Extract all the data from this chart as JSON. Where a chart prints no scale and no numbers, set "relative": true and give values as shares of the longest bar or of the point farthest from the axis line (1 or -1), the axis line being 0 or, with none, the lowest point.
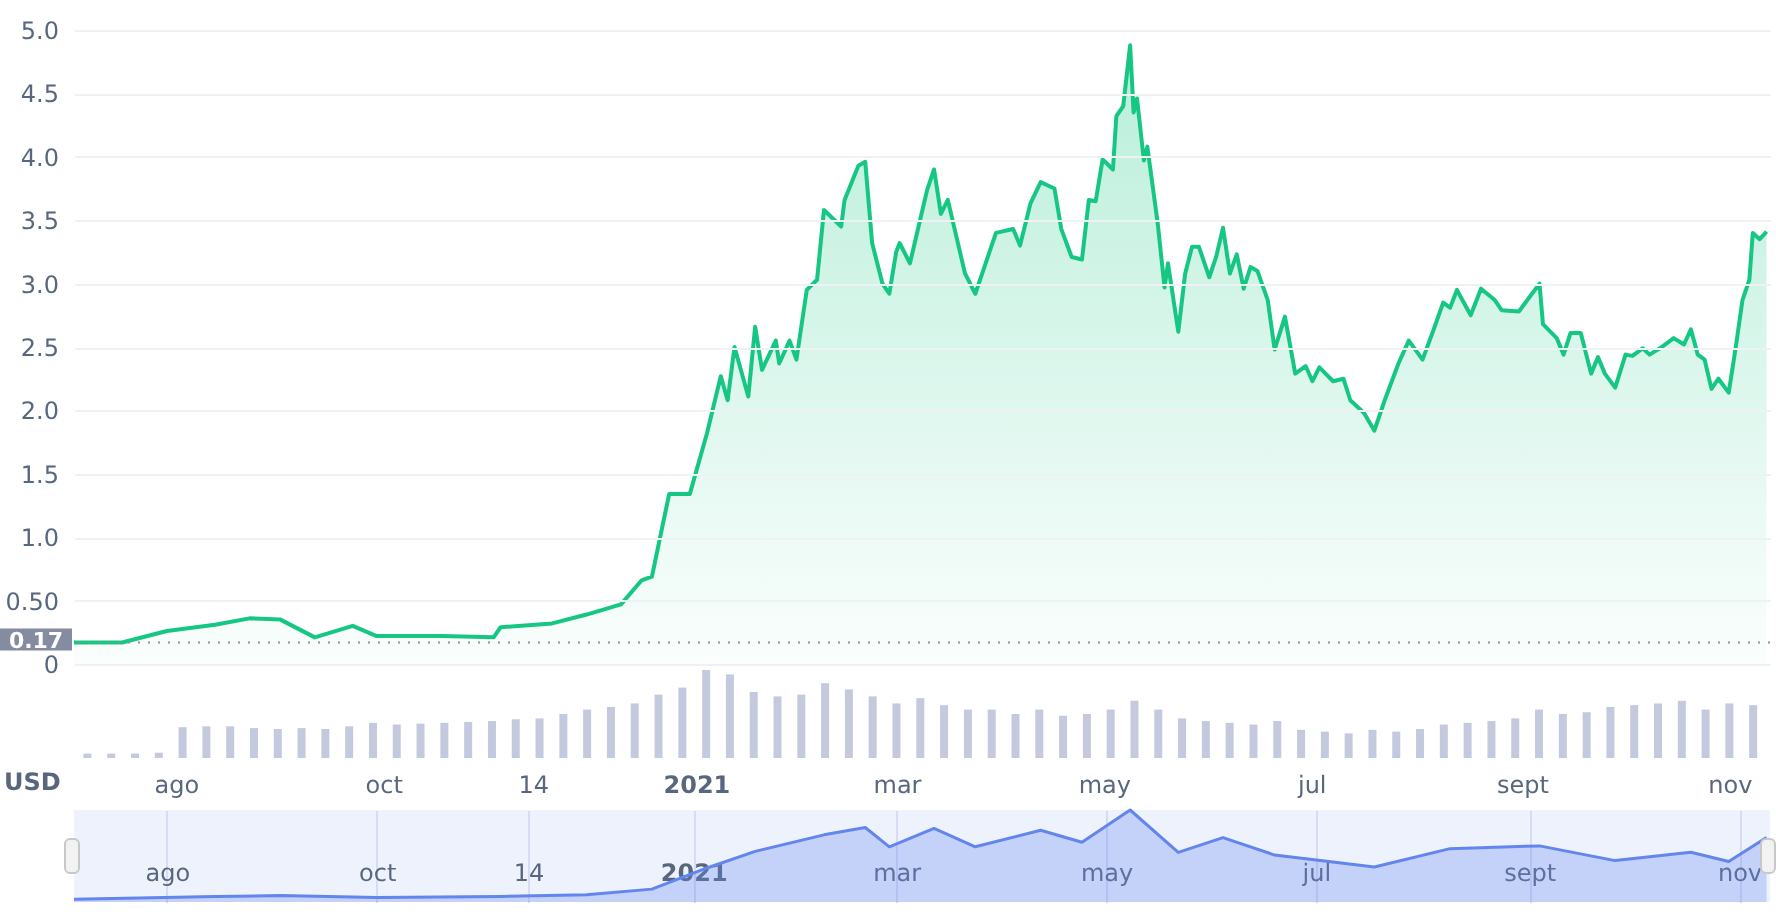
{
  "chart_data": [
    {
      "type": "area",
      "xlim": [
        "2020-07-05",
        "2021-11-10"
      ],
      "ylim": [
        0,
        5.0
      ],
      "yticks": [
        0,
        {
          "value": 0.5,
          "label": "0.50"
        },
        {
          "value": 1,
          "label": "1.0"
        },
        {
          "value": 1.5,
          "label": "1.5"
        },
        {
          "value": 2,
          "label": "2.0"
        },
        {
          "value": 2.5,
          "label": "2.5"
        },
        {
          "value": 3,
          "label": "3.0"
        },
        {
          "value": 3.5,
          "label": "3.5"
        },
        {
          "value": 4,
          "label": "4.0"
        },
        {
          "value": 4.5,
          "label": "4.5"
        },
        {
          "value": 5,
          "label": "5.0"
        }
      ],
      "tick_labels": "y",
      "grid": "y",
      "ref_lines": [
        {
          "axis": "y",
          "value": 0.17,
          "label": "0.17",
          "line_style": "dotted"
        }
      ],
      "series": [
        {
          "color": "#16c784",
          "x": [
            "2020-07-05",
            "2020-07-19",
            "2020-08-01",
            "2020-08-15",
            "2020-08-25",
            "2020-09-03",
            "2020-09-13",
            "2020-09-24",
            "2020-10-01",
            "2020-10-20",
            "2020-11-04",
            "2020-11-06",
            "2020-11-21",
            "2020-12-01",
            "2020-12-11",
            "2020-12-17",
            "2020-12-20",
            "2020-12-25",
            "2020-12-31",
            "2021-01-05",
            "2021-01-09",
            "2021-01-11",
            "2021-01-13",
            "2021-01-17",
            "2021-01-19",
            "2021-01-21",
            "2021-01-25",
            "2021-01-26",
            "2021-01-29",
            "2021-01-31",
            "2021-02-03",
            "2021-02-06",
            "2021-02-08",
            "2021-02-13",
            "2021-02-14",
            "2021-02-18",
            "2021-02-20",
            "2021-02-22",
            "2021-02-25",
            "2021-02-27",
            "2021-03-01",
            "2021-03-02",
            "2021-03-05",
            "2021-03-10",
            "2021-03-12",
            "2021-03-14",
            "2021-03-16",
            "2021-03-21",
            "2021-03-24",
            "2021-03-30",
            "2021-04-04",
            "2021-04-06",
            "2021-04-09",
            "2021-04-12",
            "2021-04-16",
            "2021-04-18",
            "2021-04-21",
            "2021-04-24",
            "2021-04-26",
            "2021-04-28",
            "2021-04-30",
            "2021-05-03",
            "2021-05-04",
            "2021-05-06",
            "2021-05-08",
            "2021-05-09",
            "2021-05-10",
            "2021-05-12",
            "2021-05-13",
            "2021-05-16",
            "2021-05-18",
            "2021-05-19",
            "2021-05-22",
            "2021-05-24",
            "2021-05-26",
            "2021-05-28",
            "2021-05-31",
            "2021-06-02",
            "2021-06-04",
            "2021-06-06",
            "2021-06-08",
            "2021-06-10",
            "2021-06-12",
            "2021-06-14",
            "2021-06-17",
            "2021-06-19",
            "2021-06-22",
            "2021-06-25",
            "2021-06-28",
            "2021-06-30",
            "2021-07-02",
            "2021-07-06",
            "2021-07-09",
            "2021-07-11",
            "2021-07-15",
            "2021-07-18",
            "2021-07-21",
            "2021-07-25",
            "2021-07-28",
            "2021-08-01",
            "2021-08-04",
            "2021-08-07",
            "2021-08-09",
            "2021-08-11",
            "2021-08-15",
            "2021-08-18",
            "2021-08-22",
            "2021-08-24",
            "2021-08-29",
            "2021-09-01",
            "2021-09-04",
            "2021-09-05",
            "2021-09-09",
            "2021-09-11",
            "2021-09-13",
            "2021-09-16",
            "2021-09-19",
            "2021-09-21",
            "2021-09-23",
            "2021-09-26",
            "2021-09-29",
            "2021-10-01",
            "2021-10-04",
            "2021-10-06",
            "2021-10-09",
            "2021-10-13",
            "2021-10-16",
            "2021-10-18",
            "2021-10-20",
            "2021-10-22",
            "2021-10-24",
            "2021-10-26",
            "2021-10-29",
            "2021-10-31",
            "2021-11-02",
            "2021-11-04",
            "2021-11-05",
            "2021-11-07",
            "2021-11-09"
          ],
          "values": [
            0.17,
            0.17,
            0.26,
            0.31,
            0.36,
            0.35,
            0.21,
            0.3,
            0.22,
            0.22,
            0.21,
            0.29,
            0.32,
            0.39,
            0.47,
            0.66,
            0.69,
            1.34,
            1.34,
            1.82,
            2.27,
            2.08,
            2.5,
            2.11,
            2.66,
            2.32,
            2.55,
            2.37,
            2.55,
            2.4,
            2.95,
            3.03,
            3.58,
            3.45,
            3.66,
            3.93,
            3.96,
            3.32,
            3.0,
            2.92,
            3.25,
            3.32,
            3.16,
            3.74,
            3.9,
            3.55,
            3.66,
            3.08,
            2.92,
            3.4,
            3.43,
            3.3,
            3.63,
            3.8,
            3.75,
            3.43,
            3.21,
            3.19,
            3.66,
            3.65,
            3.98,
            3.9,
            4.32,
            4.4,
            4.88,
            4.35,
            4.46,
            3.97,
            4.08,
            3.48,
            2.97,
            3.16,
            2.62,
            3.08,
            3.29,
            3.29,
            3.05,
            3.21,
            3.44,
            3.08,
            3.23,
            2.96,
            3.13,
            3.1,
            2.87,
            2.48,
            2.74,
            2.29,
            2.35,
            2.23,
            2.34,
            2.23,
            2.25,
            2.08,
            1.98,
            1.84,
            2.08,
            2.37,
            2.55,
            2.4,
            2.62,
            2.85,
            2.81,
            2.95,
            2.75,
            2.96,
            2.87,
            2.79,
            2.78,
            2.89,
            3.0,
            2.68,
            2.57,
            2.44,
            2.61,
            2.61,
            2.29,
            2.42,
            2.29,
            2.18,
            2.44,
            2.43,
            2.49,
            2.44,
            2.49,
            2.57,
            2.52,
            2.64,
            2.44,
            2.4,
            2.17,
            2.25,
            2.14,
            2.49,
            2.87,
            3.03,
            3.4,
            3.35,
            3.41
          ]
        }
      ]
    },
    {
      "type": "bar",
      "relative": true,
      "xlim": [
        "2020-07-05",
        "2021-11-10"
      ],
      "xticks": [
        {
          "value": "2020-08-01",
          "label": "ago"
        },
        {
          "value": "2020-10-01",
          "label": "oct"
        },
        {
          "value": "2020-11-14",
          "label": "14"
        },
        {
          "value": "2021-01-01",
          "label": "2021"
        },
        {
          "value": "2021-03-01",
          "label": "mar"
        },
        {
          "value": "2021-05-01",
          "label": "may"
        },
        {
          "value": "2021-07-01",
          "label": "jul"
        },
        {
          "value": "2021-09-01",
          "label": "sept"
        },
        {
          "value": "2021-11-01",
          "label": "nov"
        }
      ],
      "tick_labels": "x",
      "annotations": [
        "USD"
      ],
      "series": [
        {
          "color": "#c5c9de",
          "x": [
            "2020-07-06",
            "2020-07-13",
            "2020-07-20",
            "2020-07-27",
            "2020-08-03",
            "2020-08-10",
            "2020-08-17",
            "2020-08-24",
            "2020-08-31",
            "2020-09-07",
            "2020-09-14",
            "2020-09-21",
            "2020-09-28",
            "2020-10-05",
            "2020-10-12",
            "2020-10-19",
            "2020-10-26",
            "2020-11-02",
            "2020-11-09",
            "2020-11-16",
            "2020-11-23",
            "2020-11-30",
            "2020-12-07",
            "2020-12-14",
            "2020-12-21",
            "2020-12-28",
            "2021-01-04",
            "2021-01-11",
            "2021-01-18",
            "2021-01-25",
            "2021-02-01",
            "2021-02-08",
            "2021-02-15",
            "2021-02-22",
            "2021-03-01",
            "2021-03-08",
            "2021-03-15",
            "2021-03-22",
            "2021-03-29",
            "2021-04-05",
            "2021-04-12",
            "2021-04-19",
            "2021-04-26",
            "2021-05-03",
            "2021-05-10",
            "2021-05-17",
            "2021-05-24",
            "2021-05-31",
            "2021-06-07",
            "2021-06-14",
            "2021-06-21",
            "2021-06-28",
            "2021-07-05",
            "2021-07-12",
            "2021-07-19",
            "2021-07-26",
            "2021-08-02",
            "2021-08-09",
            "2021-08-16",
            "2021-08-23",
            "2021-08-30",
            "2021-09-06",
            "2021-09-13",
            "2021-09-20",
            "2021-09-27",
            "2021-10-04",
            "2021-10-11",
            "2021-10-18",
            "2021-10-25",
            "2021-11-01",
            "2021-11-08"
          ],
          "values": [
            0.05,
            0.05,
            0.05,
            0.06,
            0.35,
            0.36,
            0.36,
            0.34,
            0.33,
            0.34,
            0.33,
            0.36,
            0.4,
            0.38,
            0.39,
            0.4,
            0.41,
            0.42,
            0.44,
            0.45,
            0.5,
            0.55,
            0.58,
            0.62,
            0.72,
            0.8,
            1,
            0.95,
            0.75,
            0.7,
            0.72,
            0.85,
            0.78,
            0.7,
            0.62,
            0.68,
            0.6,
            0.55,
            0.55,
            0.5,
            0.55,
            0.48,
            0.5,
            0.55,
            0.65,
            0.55,
            0.45,
            0.42,
            0.4,
            0.38,
            0.42,
            0.32,
            0.3,
            0.28,
            0.32,
            0.3,
            0.33,
            0.38,
            0.4,
            0.42,
            0.45,
            0.55,
            0.5,
            0.52,
            0.58,
            0.6,
            0.62,
            0.65,
            0.55,
            0.62,
            0.6
          ]
        }
      ]
    },
    {
      "type": "area",
      "relative": true,
      "xlim": [
        "2020-07-05",
        "2021-11-10"
      ],
      "xticks": [
        {
          "value": "2020-08-01",
          "label": "ago"
        },
        {
          "value": "2020-10-01",
          "label": "oct"
        },
        {
          "value": "2020-11-14",
          "label": "14"
        },
        {
          "value": "2021-01-01",
          "label": "2021"
        },
        {
          "value": "2021-03-01",
          "label": "mar"
        },
        {
          "value": "2021-05-01",
          "label": "may"
        },
        {
          "value": "2021-07-01",
          "label": "jul"
        },
        {
          "value": "2021-09-01",
          "label": "sept"
        },
        {
          "value": "2021-11-01",
          "label": "nov"
        }
      ],
      "tick_labels": "x",
      "grid": "x",
      "series": [
        {
          "color": "#6385ee",
          "x": [
            "2020-07-05",
            "2020-08-15",
            "2020-09-03",
            "2020-10-01",
            "2020-11-06",
            "2020-12-01",
            "2020-12-20",
            "2021-01-05",
            "2021-01-19",
            "2021-02-08",
            "2021-02-20",
            "2021-02-27",
            "2021-03-12",
            "2021-03-24",
            "2021-04-12",
            "2021-04-24",
            "2021-05-08",
            "2021-05-22",
            "2021-06-04",
            "2021-06-19",
            "2021-07-18",
            "2021-08-09",
            "2021-09-04",
            "2021-09-26",
            "2021-10-18",
            "2021-10-29",
            "2021-11-09"
          ],
          "values": [
            0.03,
            0.06,
            0.07,
            0.05,
            0.06,
            0.08,
            0.14,
            0.37,
            0.55,
            0.73,
            0.81,
            0.6,
            0.8,
            0.6,
            0.78,
            0.65,
            1,
            0.54,
            0.7,
            0.51,
            0.38,
            0.58,
            0.61,
            0.45,
            0.54,
            0.44,
            0.7
          ]
        }
      ]
    }
  ]
}
